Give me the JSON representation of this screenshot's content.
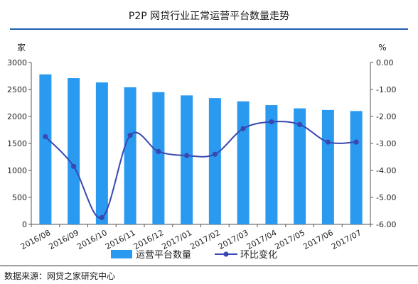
{
  "title": "P2P 网贷行业正常运营平台数量走势",
  "source": "数据来源：网贷之家研究中心",
  "chart_data": {
    "type": "bar",
    "categories": [
      "2016/08",
      "2016/09",
      "2016/10",
      "2016/11",
      "2016/12",
      "2017/01",
      "2017/02",
      "2017/03",
      "2017/04",
      "2017/05",
      "2017/06",
      "2017/07"
    ],
    "series": [
      {
        "name": "运营平台数量",
        "type": "bar",
        "axis": "left",
        "color": "#2a9af0",
        "values": [
          2780,
          2710,
          2630,
          2540,
          2450,
          2390,
          2340,
          2280,
          2210,
          2150,
          2120,
          2100
        ]
      },
      {
        "name": "环比变化",
        "type": "line",
        "axis": "right",
        "color": "#3848b0",
        "values": [
          -2.75,
          -3.85,
          -5.75,
          -2.7,
          -3.3,
          -3.45,
          -3.4,
          -2.45,
          -2.2,
          -2.3,
          -2.95,
          -2.95
        ]
      }
    ],
    "y_left": {
      "label": "家",
      "ylim": [
        0,
        3000
      ],
      "ticks": [
        "0",
        "500",
        "1000",
        "1500",
        "2000",
        "2500",
        "3000"
      ]
    },
    "y_right": {
      "label": "%",
      "ylim": [
        -6,
        0
      ],
      "ticks": [
        "-6.00",
        "-5.00",
        "-4.00",
        "-3.00",
        "-2.00",
        "-1.00",
        "0.00"
      ]
    },
    "legend": "bottom",
    "grid": false
  }
}
